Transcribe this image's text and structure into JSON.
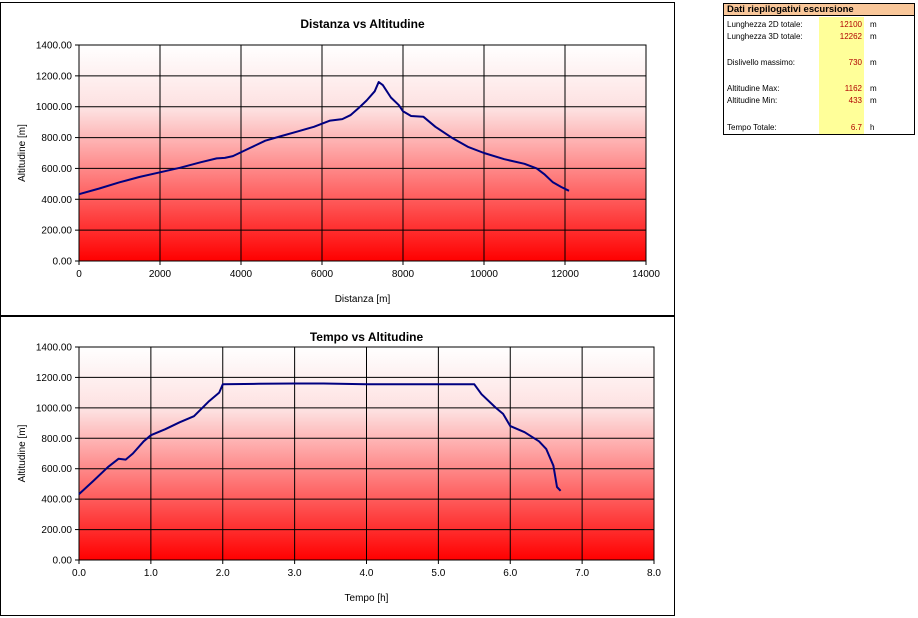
{
  "chart_data": [
    {
      "type": "line",
      "title": "Distanza vs Altitudine",
      "xlabel": "Distanza [m]",
      "ylabel": "Altitudine [m]",
      "xlim": [
        0,
        14000
      ],
      "ylim": [
        0,
        1400
      ],
      "xticks": [
        "0",
        "2000",
        "4000",
        "6000",
        "8000",
        "10000",
        "12000",
        "14000"
      ],
      "yticks": [
        "0.00",
        "200.00",
        "400.00",
        "600.00",
        "800.00",
        "1000.00",
        "1200.00",
        "1400.00"
      ],
      "grid": true,
      "line_color": "#000080",
      "series": [
        {
          "x": [
            0,
            500,
            1000,
            1500,
            2000,
            2500,
            3000,
            3400,
            3600,
            3800,
            4200,
            4600,
            5000,
            5400,
            5800,
            6000,
            6200,
            6500,
            6700,
            6900,
            7100,
            7300,
            7400,
            7500,
            7700,
            7900,
            8000,
            8200,
            8500,
            8800,
            9200,
            9600,
            10000,
            10500,
            11000,
            11300,
            11500,
            11700,
            11900,
            12100
          ],
          "y": [
            433,
            470,
            510,
            545,
            575,
            605,
            640,
            665,
            668,
            680,
            730,
            780,
            810,
            840,
            870,
            890,
            910,
            920,
            945,
            990,
            1040,
            1100,
            1160,
            1140,
            1060,
            1010,
            970,
            940,
            935,
            870,
            800,
            740,
            700,
            660,
            630,
            600,
            560,
            510,
            480,
            455
          ]
        }
      ]
    },
    {
      "type": "line",
      "title": "Tempo vs Altitudine",
      "xlabel": "Tempo [h]",
      "ylabel": "Altitudine [m]",
      "xlim": [
        0,
        8
      ],
      "ylim": [
        0,
        1400
      ],
      "xticks": [
        "0.0",
        "1.0",
        "2.0",
        "3.0",
        "4.0",
        "5.0",
        "6.0",
        "7.0",
        "8.0"
      ],
      "yticks": [
        "0.00",
        "200.00",
        "400.00",
        "600.00",
        "800.00",
        "1000.00",
        "1200.00",
        "1400.00"
      ],
      "grid": true,
      "line_color": "#000080",
      "series": [
        {
          "x": [
            0,
            0.2,
            0.4,
            0.55,
            0.65,
            0.75,
            0.9,
            1.0,
            1.2,
            1.4,
            1.6,
            1.8,
            1.95,
            2.0,
            2.5,
            3.0,
            3.4,
            4.0,
            4.5,
            5.0,
            5.5,
            5.6,
            5.8,
            5.9,
            6.0,
            6.2,
            6.4,
            6.5,
            6.6,
            6.65,
            6.7
          ],
          "y": [
            433,
            520,
            610,
            665,
            660,
            700,
            780,
            820,
            860,
            905,
            945,
            1040,
            1100,
            1155,
            1158,
            1160,
            1160,
            1155,
            1155,
            1155,
            1155,
            1090,
            1000,
            960,
            880,
            840,
            780,
            730,
            620,
            480,
            455
          ]
        }
      ]
    }
  ],
  "summary": {
    "title": "Dati riepilogativi escursione",
    "rows": [
      {
        "label": "Lunghezza 2D totale:",
        "value": "12100",
        "unit": "m"
      },
      {
        "label": "Lunghezza 3D totale:",
        "value": "12262",
        "unit": "m"
      },
      {
        "label": "Dislivello massimo:",
        "value": "730",
        "unit": "m"
      },
      {
        "label": "Altitudine Max:",
        "value": "1162",
        "unit": "m"
      },
      {
        "label": "Altitudine Min:",
        "value": "433",
        "unit": "m"
      },
      {
        "label": "Tempo Totale:",
        "value": "6.7",
        "unit": "h"
      }
    ]
  }
}
